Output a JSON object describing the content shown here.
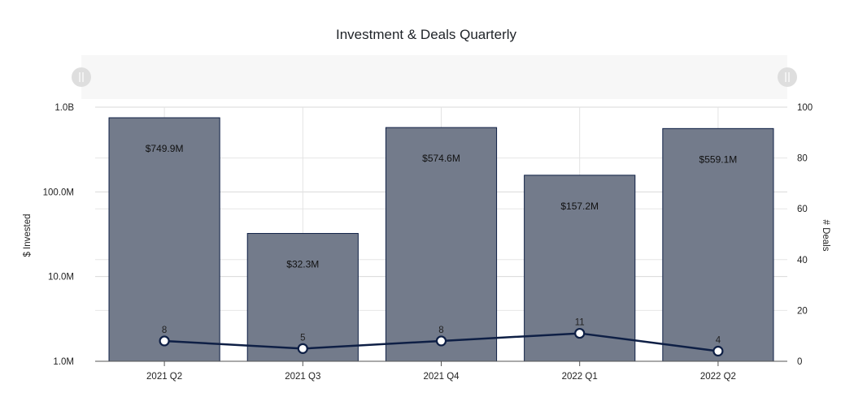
{
  "chart_data": {
    "type": "bar",
    "title": "Investment & Deals Quarterly",
    "categories": [
      "2021 Q2",
      "2021 Q3",
      "2021 Q4",
      "2022 Q1",
      "2022 Q2"
    ],
    "series": [
      {
        "values": [
          749900000,
          32300000,
          574600000,
          157200000,
          559100000
        ],
        "labels": [
          "$749.9M",
          "$32.3M",
          "$574.6M",
          "$157.2M",
          "$559.1M"
        ],
        "type": "bar",
        "axis": "left",
        "color": "#737b8b"
      },
      {
        "values": [
          8,
          5,
          8,
          11,
          4
        ],
        "labels": [
          "8",
          "5",
          "8",
          "11",
          "4"
        ],
        "type": "line",
        "axis": "right",
        "color": "#0e1f45"
      }
    ],
    "y_left": {
      "label": "$ Invested",
      "scale": "log",
      "ylim": [
        1000000,
        1000000000
      ],
      "ticks": [
        1000000,
        10000000,
        100000000,
        1000000000
      ],
      "tick_labels": [
        "1.0M",
        "10.0M",
        "100.0M",
        "1.0B"
      ]
    },
    "y_right": {
      "label": "# Deals",
      "scale": "linear",
      "ylim": [
        0,
        100
      ],
      "ticks": [
        0,
        20,
        40,
        60,
        80,
        100
      ],
      "tick_labels": [
        "0",
        "20",
        "40",
        "60",
        "80",
        "100"
      ]
    },
    "grid": true,
    "legend": "none",
    "navigator": true
  }
}
